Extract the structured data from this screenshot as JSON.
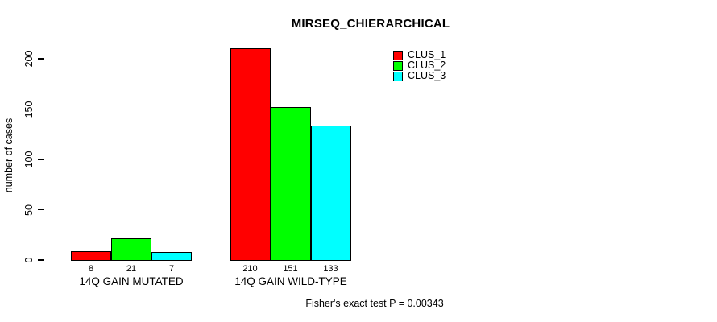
{
  "chart_data": {
    "type": "bar",
    "title": "MIRSEQ_CHIERARCHICAL",
    "ylabel": "number of cases",
    "xlabel": "",
    "categories": [
      "14Q GAIN MUTATED",
      "14Q GAIN WILD-TYPE"
    ],
    "series": [
      {
        "name": "CLUS_1",
        "color": "#ff0000",
        "values": [
          8,
          210
        ]
      },
      {
        "name": "CLUS_2",
        "color": "#00ff00",
        "values": [
          21,
          151
        ]
      },
      {
        "name": "CLUS_3",
        "color": "#00ffff",
        "values": [
          7,
          133
        ]
      }
    ],
    "bar_value_labels": [
      [
        8,
        21,
        7
      ],
      [
        210,
        151,
        133
      ]
    ],
    "yticks": [
      0,
      50,
      100,
      150,
      200
    ],
    "ylim": [
      0,
      210
    ],
    "grid": false,
    "legend": {
      "position": "top-right",
      "entries": [
        "CLUS_1",
        "CLUS_2",
        "CLUS_3"
      ]
    },
    "annotation": "Fisher's exact test P = 0.00343"
  },
  "colors": {
    "background": "#ffffff",
    "text": "#000000",
    "axis": "#000000",
    "bar_border": "#000000",
    "series": [
      "#ff0000",
      "#00ff00",
      "#00ffff"
    ]
  }
}
